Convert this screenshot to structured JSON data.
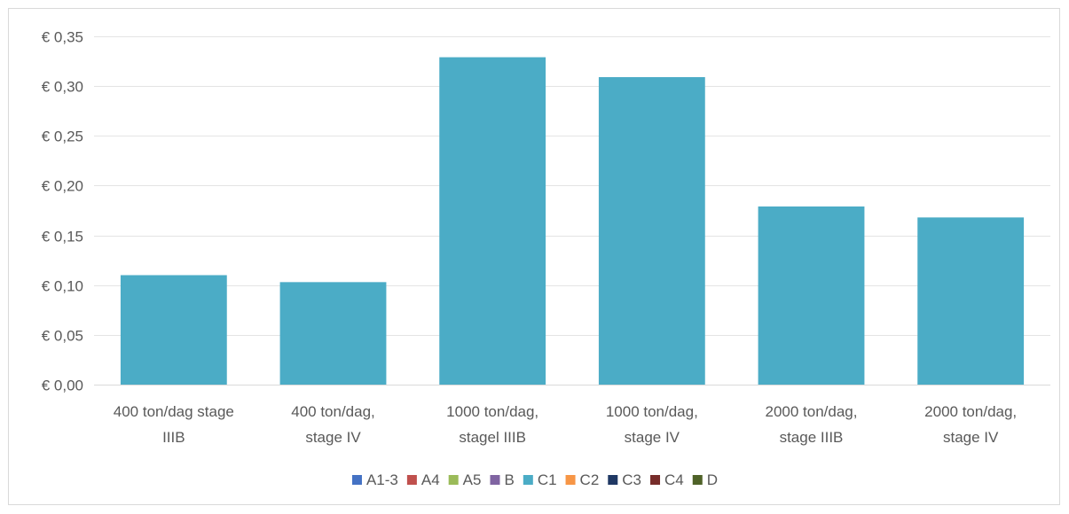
{
  "chart_data": {
    "type": "bar",
    "categories": [
      [
        "400 ton/dag stage",
        "IIIB"
      ],
      [
        "400 ton/dag,",
        "stage IV"
      ],
      [
        "1000 ton/dag,",
        "stagel IIIB"
      ],
      [
        "1000 ton/dag,",
        "stage IV"
      ],
      [
        "2000 ton/dag,",
        "stage IIIB"
      ],
      [
        "2000 ton/dag,",
        "stage IV"
      ]
    ],
    "series": [
      {
        "name": "A1-3",
        "color": "#4472c4",
        "values": [
          0,
          0,
          0,
          0,
          0,
          0
        ]
      },
      {
        "name": "A4",
        "color": "#c0504d",
        "values": [
          0,
          0,
          0,
          0,
          0,
          0
        ]
      },
      {
        "name": "A5",
        "color": "#9bbb59",
        "values": [
          0,
          0,
          0,
          0,
          0,
          0
        ]
      },
      {
        "name": "B",
        "color": "#8064a2",
        "values": [
          0,
          0,
          0,
          0,
          0,
          0
        ]
      },
      {
        "name": "C1",
        "color": "#4bacc6",
        "values": [
          0.11,
          0.103,
          0.329,
          0.309,
          0.179,
          0.168
        ]
      },
      {
        "name": "C2",
        "color": "#f79646",
        "values": [
          0,
          0,
          0,
          0,
          0,
          0
        ]
      },
      {
        "name": "C3",
        "color": "#1f3864",
        "values": [
          0,
          0,
          0,
          0,
          0,
          0
        ]
      },
      {
        "name": "C4",
        "color": "#772c2a",
        "values": [
          0,
          0,
          0,
          0,
          0,
          0
        ]
      },
      {
        "name": "D",
        "color": "#4f6228",
        "values": [
          0,
          0,
          0,
          0,
          0,
          0
        ]
      }
    ],
    "ylim": [
      0,
      0.35
    ],
    "yticks": [
      "€ 0,00",
      "€ 0,05",
      "€ 0,10",
      "€ 0,15",
      "€ 0,20",
      "€ 0,25",
      "€ 0,30",
      "€ 0,35"
    ],
    "grid": true,
    "legend": "bottom",
    "title": "",
    "xlabel": "",
    "ylabel": ""
  }
}
